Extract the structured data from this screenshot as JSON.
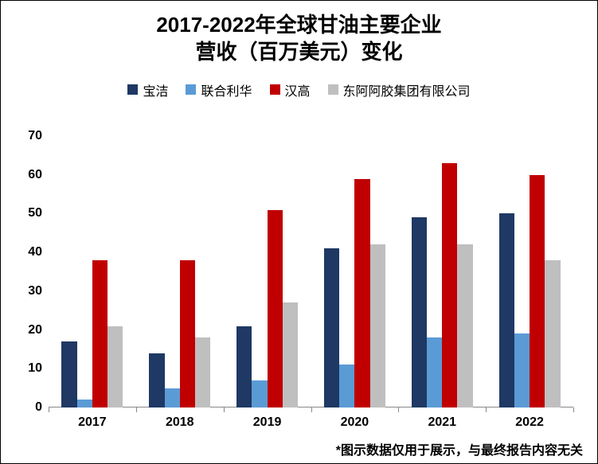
{
  "title_line1": "2017-2022年全球甘油主要企业",
  "title_line2": "营收（百万美元）变化",
  "title_fontsize": 26,
  "footnote": "*图示数据仅用于展示，与最终报告内容无关",
  "footnote_fontsize": 16,
  "legend_fontsize": 16,
  "axis_fontsize": 16,
  "chart": {
    "type": "bar",
    "categories": [
      "2017",
      "2018",
      "2019",
      "2020",
      "2021",
      "2022"
    ],
    "series": [
      {
        "name": "宝洁",
        "color": "#1f3864",
        "values": [
          17,
          14,
          21,
          41,
          49,
          50
        ]
      },
      {
        "name": "联合利华",
        "color": "#5b9bd5",
        "values": [
          2,
          5,
          7,
          11,
          18,
          19
        ]
      },
      {
        "name": "汉高",
        "color": "#c00000",
        "values": [
          38,
          38,
          51,
          59,
          63,
          60
        ]
      },
      {
        "name": "东阿阿胶集团有限公司",
        "color": "#bfbfbf",
        "values": [
          21,
          18,
          27,
          42,
          42,
          38
        ]
      }
    ],
    "ylim": [
      0,
      70
    ],
    "ytick_step": 10,
    "background_color": "#ffffff",
    "tick_color": "#888888",
    "bar_gap_ratio": 0.3,
    "bar_inner_gap_ratio": 0.0
  }
}
